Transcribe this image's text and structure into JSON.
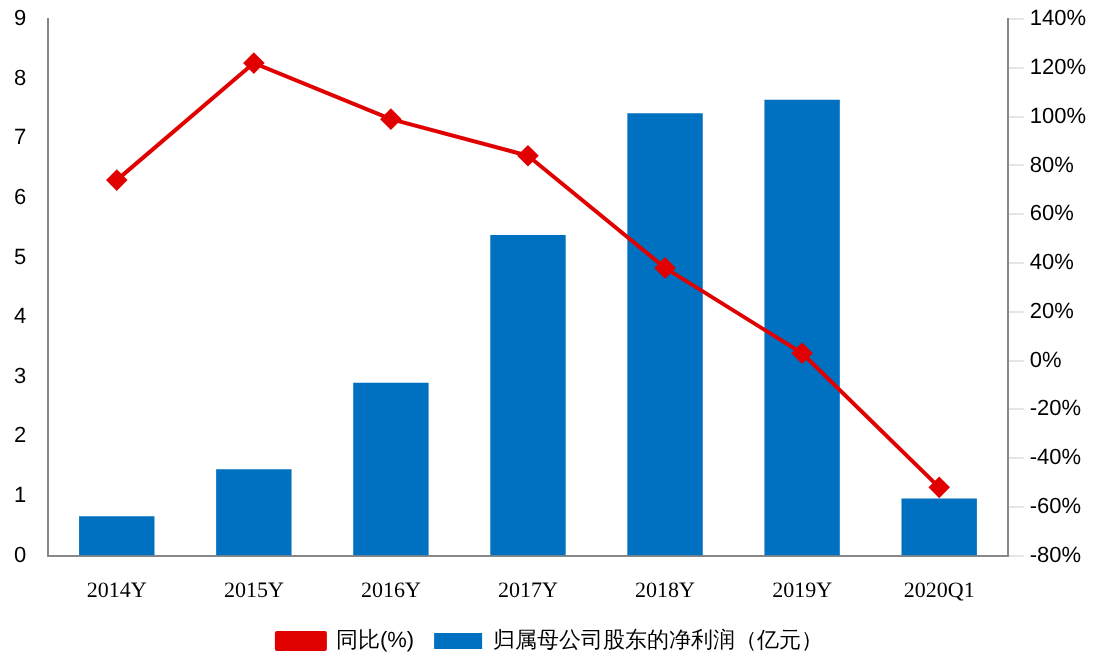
{
  "chart_data": {
    "type": "bar",
    "categories": [
      "2014Y",
      "2015Y",
      "2016Y",
      "2017Y",
      "2018Y",
      "2019Y",
      "2020Q1"
    ],
    "series": [
      {
        "name": "归属母公司股东的净利润（亿元）",
        "color": "#0070c0",
        "values": [
          0.66,
          1.45,
          2.9,
          5.38,
          7.42,
          7.65,
          0.96
        ]
      },
      {
        "name": "同比(%)",
        "type": "line",
        "axis": "y2",
        "color": "#e00000",
        "marker": "diamond",
        "values": [
          74,
          122,
          99,
          84,
          38,
          3,
          -52
        ]
      }
    ],
    "ylim": [
      0,
      9
    ],
    "yticks": [
      0,
      1,
      2,
      3,
      4,
      5,
      6,
      7,
      8,
      9
    ],
    "y2lim": [
      -80,
      140
    ],
    "y2ticks": [
      {
        "value": -80,
        "label": "-80%"
      },
      {
        "value": -60,
        "label": "-60%"
      },
      {
        "value": -40,
        "label": "-40%"
      },
      {
        "value": -20,
        "label": "-20%"
      },
      {
        "value": 0,
        "label": "0%"
      },
      {
        "value": 20,
        "label": "20%"
      },
      {
        "value": 40,
        "label": "40%"
      },
      {
        "value": 60,
        "label": "60%"
      },
      {
        "value": 80,
        "label": "80%"
      },
      {
        "value": 100,
        "label": "100%"
      },
      {
        "value": 120,
        "label": "120%"
      },
      {
        "value": 140,
        "label": "140%"
      }
    ],
    "grid": false,
    "legend": "bottom"
  }
}
